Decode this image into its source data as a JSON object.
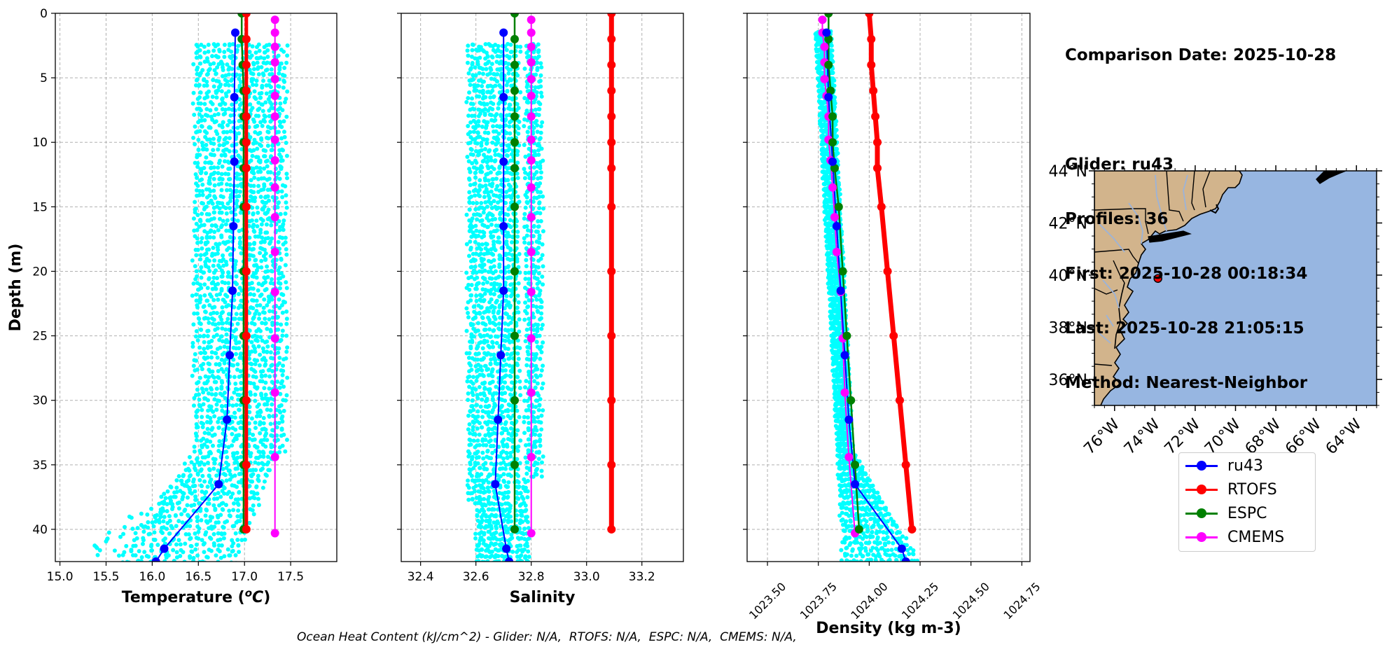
{
  "info": {
    "comparison_date": "Comparison Date: 2025-10-28",
    "glider": "Glider: ru43",
    "profiles": "Profiles: 36",
    "first": "First: 2025-10-28 00:18:34",
    "last": "Last: 2025-10-28 21:05:15",
    "method": "Method: Nearest-Neighbor"
  },
  "footer_note": "Ocean Heat Content (kJ/cm^2) - Glider: N/A,  RTOFS: N/A,  ESPC: N/A,  CMEMS: N/A,",
  "colors": {
    "glider_scatter": "#00ffff",
    "ru43": "#0000ff",
    "RTOFS": "#ff0000",
    "ESPC": "#008000",
    "CMEMS": "#ff00ff",
    "land": "#d2b48c",
    "ocean": "#97b6e1",
    "grid": "#b0b0b0"
  },
  "legend": [
    "ru43",
    "RTOFS",
    "ESPC",
    "CMEMS"
  ],
  "chart_data": [
    {
      "type": "line",
      "panel": "temperature",
      "xlabel": "Temperature (°C)",
      "ylabel": "Depth (m)",
      "xlim": [
        14.95,
        18.0
      ],
      "ylim": [
        42.5,
        0
      ],
      "xticks": [
        "15.0",
        "15.5",
        "16.0",
        "16.5",
        "17.0",
        "17.5"
      ],
      "yticks": [
        "0",
        "5",
        "10",
        "15",
        "20",
        "25",
        "30",
        "35",
        "40"
      ],
      "grid": true,
      "scatter_cloud": {
        "name": "glider profiles",
        "x_min": 16.45,
        "x_max": 17.45,
        "depth_min": 2.5,
        "depth_max": 42.5,
        "deep_tail": [
          [
            41.5,
            15.5
          ],
          [
            40.5,
            15.6
          ],
          [
            39.5,
            15.8
          ],
          [
            39.0,
            16.0
          ],
          [
            38.0,
            16.2
          ],
          [
            37.0,
            16.35
          ]
        ]
      },
      "series": [
        {
          "name": "ru43",
          "depth": [
            1.5,
            6.5,
            11.5,
            16.5,
            21.5,
            26.5,
            31.5,
            36.5,
            41.5,
            42.5
          ],
          "values": [
            16.9,
            16.89,
            16.89,
            16.88,
            16.87,
            16.84,
            16.81,
            16.72,
            16.13,
            16.04
          ]
        },
        {
          "name": "RTOFS",
          "depth": [
            0,
            2,
            4,
            6,
            8,
            10,
            12,
            15,
            20,
            25,
            30,
            35,
            40
          ],
          "values": [
            17.02,
            17.02,
            17.02,
            17.02,
            17.02,
            17.02,
            17.02,
            17.02,
            17.02,
            17.02,
            17.02,
            17.02,
            17.02
          ]
        },
        {
          "name": "ESPC",
          "depth": [
            0,
            2,
            4,
            6,
            8,
            10,
            12,
            15,
            20,
            25,
            30,
            35,
            40
          ],
          "values": [
            16.97,
            16.97,
            16.98,
            16.99,
            16.99,
            16.99,
            16.99,
            16.99,
            16.99,
            16.99,
            16.99,
            16.99,
            16.99
          ]
        },
        {
          "name": "CMEMS",
          "depth": [
            0.5,
            1.5,
            2.6,
            3.8,
            5.1,
            6.4,
            8.0,
            9.8,
            11.4,
            13.5,
            15.8,
            18.5,
            21.6,
            25.2,
            29.4,
            34.4,
            40.3
          ],
          "values": [
            17.33,
            17.33,
            17.33,
            17.33,
            17.33,
            17.33,
            17.33,
            17.33,
            17.33,
            17.33,
            17.33,
            17.33,
            17.33,
            17.33,
            17.33,
            17.33,
            17.33
          ]
        }
      ]
    },
    {
      "type": "line",
      "panel": "salinity",
      "xlabel": "Salinity",
      "xlim": [
        32.33,
        33.35
      ],
      "ylim": [
        42.5,
        0
      ],
      "xticks": [
        "32.4",
        "32.6",
        "32.8",
        "33.0",
        "33.2"
      ],
      "grid": true,
      "scatter_cloud": {
        "name": "glider profiles",
        "x_min": 32.57,
        "x_max": 32.84,
        "depth_min": 2.5,
        "depth_max": 42.5
      },
      "series": [
        {
          "name": "ru43",
          "depth": [
            1.5,
            6.5,
            11.5,
            16.5,
            21.5,
            26.5,
            31.5,
            36.5,
            41.5,
            42.5
          ],
          "values": [
            32.7,
            32.7,
            32.7,
            32.7,
            32.7,
            32.69,
            32.68,
            32.67,
            32.71,
            32.72
          ]
        },
        {
          "name": "RTOFS",
          "depth": [
            0,
            2,
            4,
            6,
            8,
            10,
            12,
            15,
            20,
            25,
            30,
            35,
            40
          ],
          "values": [
            33.09,
            33.09,
            33.09,
            33.09,
            33.09,
            33.09,
            33.09,
            33.09,
            33.09,
            33.09,
            33.09,
            33.09,
            33.09
          ]
        },
        {
          "name": "ESPC",
          "depth": [
            0,
            2,
            4,
            6,
            8,
            10,
            12,
            15,
            20,
            25,
            30,
            35,
            40
          ],
          "values": [
            32.74,
            32.74,
            32.74,
            32.74,
            32.74,
            32.74,
            32.74,
            32.74,
            32.74,
            32.74,
            32.74,
            32.74,
            32.74
          ]
        },
        {
          "name": "CMEMS",
          "depth": [
            0.5,
            1.5,
            2.6,
            3.8,
            5.1,
            6.4,
            8.0,
            9.8,
            11.4,
            13.5,
            15.8,
            18.5,
            21.6,
            25.2,
            29.4,
            34.4,
            40.3
          ],
          "values": [
            32.8,
            32.8,
            32.8,
            32.8,
            32.8,
            32.8,
            32.8,
            32.8,
            32.8,
            32.8,
            32.8,
            32.8,
            32.8,
            32.8,
            32.8,
            32.8,
            32.8
          ]
        }
      ]
    },
    {
      "type": "line",
      "panel": "density",
      "xlabel": "Density (kg m-3)",
      "xlim": [
        1023.4,
        1024.79
      ],
      "ylim": [
        42.5,
        0
      ],
      "xticks": [
        "1023.50",
        "1023.75",
        "1024.00",
        "1024.25",
        "1024.50",
        "1024.75"
      ],
      "grid": true,
      "scatter_cloud": {
        "name": "glider profiles",
        "x_min_top": 1023.76,
        "x_max_top": 1023.84,
        "x_min_bottom": 1023.88,
        "x_max_bottom": 1024.3,
        "depth_min": 1.5,
        "depth_max": 42.5
      },
      "series": [
        {
          "name": "ru43",
          "depth": [
            1.5,
            6.5,
            11.5,
            16.5,
            21.5,
            26.5,
            31.5,
            36.5,
            41.5,
            42.5
          ],
          "values": [
            1023.79,
            1023.8,
            1023.82,
            1023.84,
            1023.86,
            1023.88,
            1023.9,
            1023.93,
            1024.16,
            1024.18
          ]
        },
        {
          "name": "RTOFS",
          "depth": [
            0,
            2,
            4,
            6,
            8,
            10,
            12,
            15,
            20,
            25,
            30,
            35,
            40
          ],
          "values": [
            1024.0,
            1024.01,
            1024.01,
            1024.02,
            1024.03,
            1024.04,
            1024.04,
            1024.06,
            1024.09,
            1024.12,
            1024.15,
            1024.18,
            1024.21
          ]
        },
        {
          "name": "ESPC",
          "depth": [
            0,
            2,
            4,
            6,
            8,
            10,
            12,
            15,
            20,
            25,
            30,
            35,
            40
          ],
          "values": [
            1023.8,
            1023.8,
            1023.8,
            1023.81,
            1023.82,
            1023.82,
            1023.83,
            1023.85,
            1023.87,
            1023.89,
            1023.91,
            1023.93,
            1023.95
          ]
        },
        {
          "name": "CMEMS",
          "depth": [
            0.5,
            1.5,
            2.6,
            3.8,
            5.1,
            6.4,
            8.0,
            9.8,
            11.4,
            13.5,
            15.8,
            18.5,
            21.6,
            25.2,
            29.4,
            34.4,
            40.3
          ],
          "values": [
            1023.77,
            1023.77,
            1023.78,
            1023.78,
            1023.78,
            1023.79,
            1023.8,
            1023.8,
            1023.81,
            1023.82,
            1023.83,
            1023.84,
            1023.86,
            1023.87,
            1023.88,
            1023.9,
            1023.93
          ]
        }
      ]
    }
  ],
  "map": {
    "type": "map",
    "lon_range": [
      -77.0,
      -63.0
    ],
    "lat_range": [
      35.0,
      44.0
    ],
    "lon_ticks": [
      "76°W",
      "74°W",
      "72°W",
      "70°W",
      "68°W",
      "66°W",
      "64°W"
    ],
    "lat_ticks": [
      "44°N",
      "42°N",
      "40°N",
      "38°N",
      "36°N"
    ],
    "glider_location": {
      "lon": -73.85,
      "lat": 39.87,
      "marker_color": "#ff0000"
    }
  }
}
